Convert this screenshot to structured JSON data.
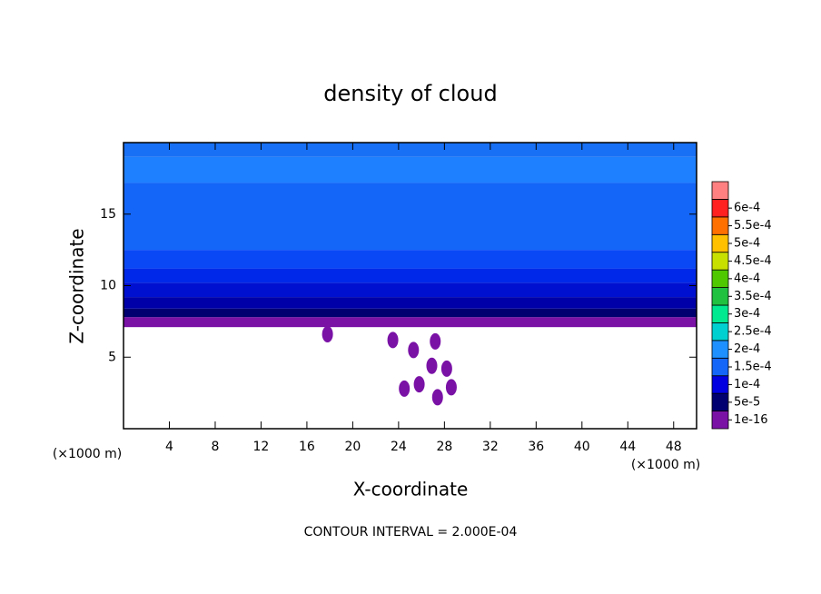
{
  "chart_data": {
    "type": "contour",
    "title": "density of cloud",
    "xlabel": "X-coordinate",
    "ylabel": "Z-coordinate",
    "x_unit": "(×1000 m)",
    "y_unit": "(×1000 m)",
    "annotation": "CONTOUR INTERVAL = 2.000E-04",
    "xlim": [
      0,
      50
    ],
    "ylim": [
      0,
      20
    ],
    "xticks": [
      4,
      8,
      12,
      16,
      20,
      24,
      28,
      32,
      36,
      40,
      44,
      48
    ],
    "yticks": [
      5,
      10,
      15
    ],
    "bands": [
      {
        "z": [
          7.1,
          7.8
        ],
        "color": "#7a12a6"
      },
      {
        "z": [
          7.8,
          8.4
        ],
        "color": "#000070"
      },
      {
        "z": [
          8.4,
          9.2
        ],
        "color": "#0000a8"
      },
      {
        "z": [
          9.2,
          10.2
        ],
        "color": "#0010d0"
      },
      {
        "z": [
          10.2,
          11.2
        ],
        "color": "#0028e8"
      },
      {
        "z": [
          11.2,
          12.5
        ],
        "color": "#0a48f6"
      },
      {
        "z": [
          12.5,
          17.2
        ],
        "color": "#1466f8"
      },
      {
        "z": [
          17.2,
          19.0
        ],
        "color": "#1e80ff"
      },
      {
        "z": [
          19.0,
          20.0
        ],
        "color": "#1870f4"
      }
    ],
    "patches": [
      {
        "x": [
          27.4,
          2.2
        ],
        "color": "#7a12a6"
      },
      {
        "x": [
          28.6,
          2.9
        ],
        "color": "#7a12a6"
      },
      {
        "x": [
          25.8,
          3.1
        ],
        "color": "#7a12a6"
      },
      {
        "x": [
          28.2,
          4.2
        ],
        "color": "#7a12a6"
      },
      {
        "x": [
          26.9,
          4.4
        ],
        "color": "#7a12a6"
      },
      {
        "x": [
          24.5,
          2.8
        ],
        "color": "#7a12a6"
      },
      {
        "x": [
          23.5,
          6.2
        ],
        "color": "#7a12a6"
      },
      {
        "x": [
          25.3,
          5.5
        ],
        "color": "#7a12a6"
      },
      {
        "x": [
          27.2,
          6.1
        ],
        "color": "#7a12a6"
      },
      {
        "x": [
          17.8,
          6.6
        ],
        "color": "#7a12a6"
      }
    ],
    "colorbar": {
      "ticks": [
        {
          "value": 1e-16,
          "label": "1e-16"
        },
        {
          "value": 5e-05,
          "label": "5e-5"
        },
        {
          "value": 0.0001,
          "label": "1e-4"
        },
        {
          "value": 0.00015,
          "label": "1.5e-4"
        },
        {
          "value": 0.0002,
          "label": "2e-4"
        },
        {
          "value": 0.00025,
          "label": "2.5e-4"
        },
        {
          "value": 0.0003,
          "label": "3e-4"
        },
        {
          "value": 0.00035,
          "label": "3.5e-4"
        },
        {
          "value": 0.0004,
          "label": "4e-4"
        },
        {
          "value": 0.00045,
          "label": "4.5e-4"
        },
        {
          "value": 0.0005,
          "label": "5e-4"
        },
        {
          "value": 0.00055,
          "label": "5.5e-4"
        },
        {
          "value": 0.0006,
          "label": "6e-4"
        }
      ],
      "colors": [
        "#7a12a6",
        "#000070",
        "#0000e0",
        "#1466f8",
        "#1e90ff",
        "#00d0d0",
        "#00e890",
        "#20c040",
        "#50c800",
        "#c8e000",
        "#ffc000",
        "#ff7000",
        "#ff2020",
        "#ff8080"
      ]
    }
  }
}
